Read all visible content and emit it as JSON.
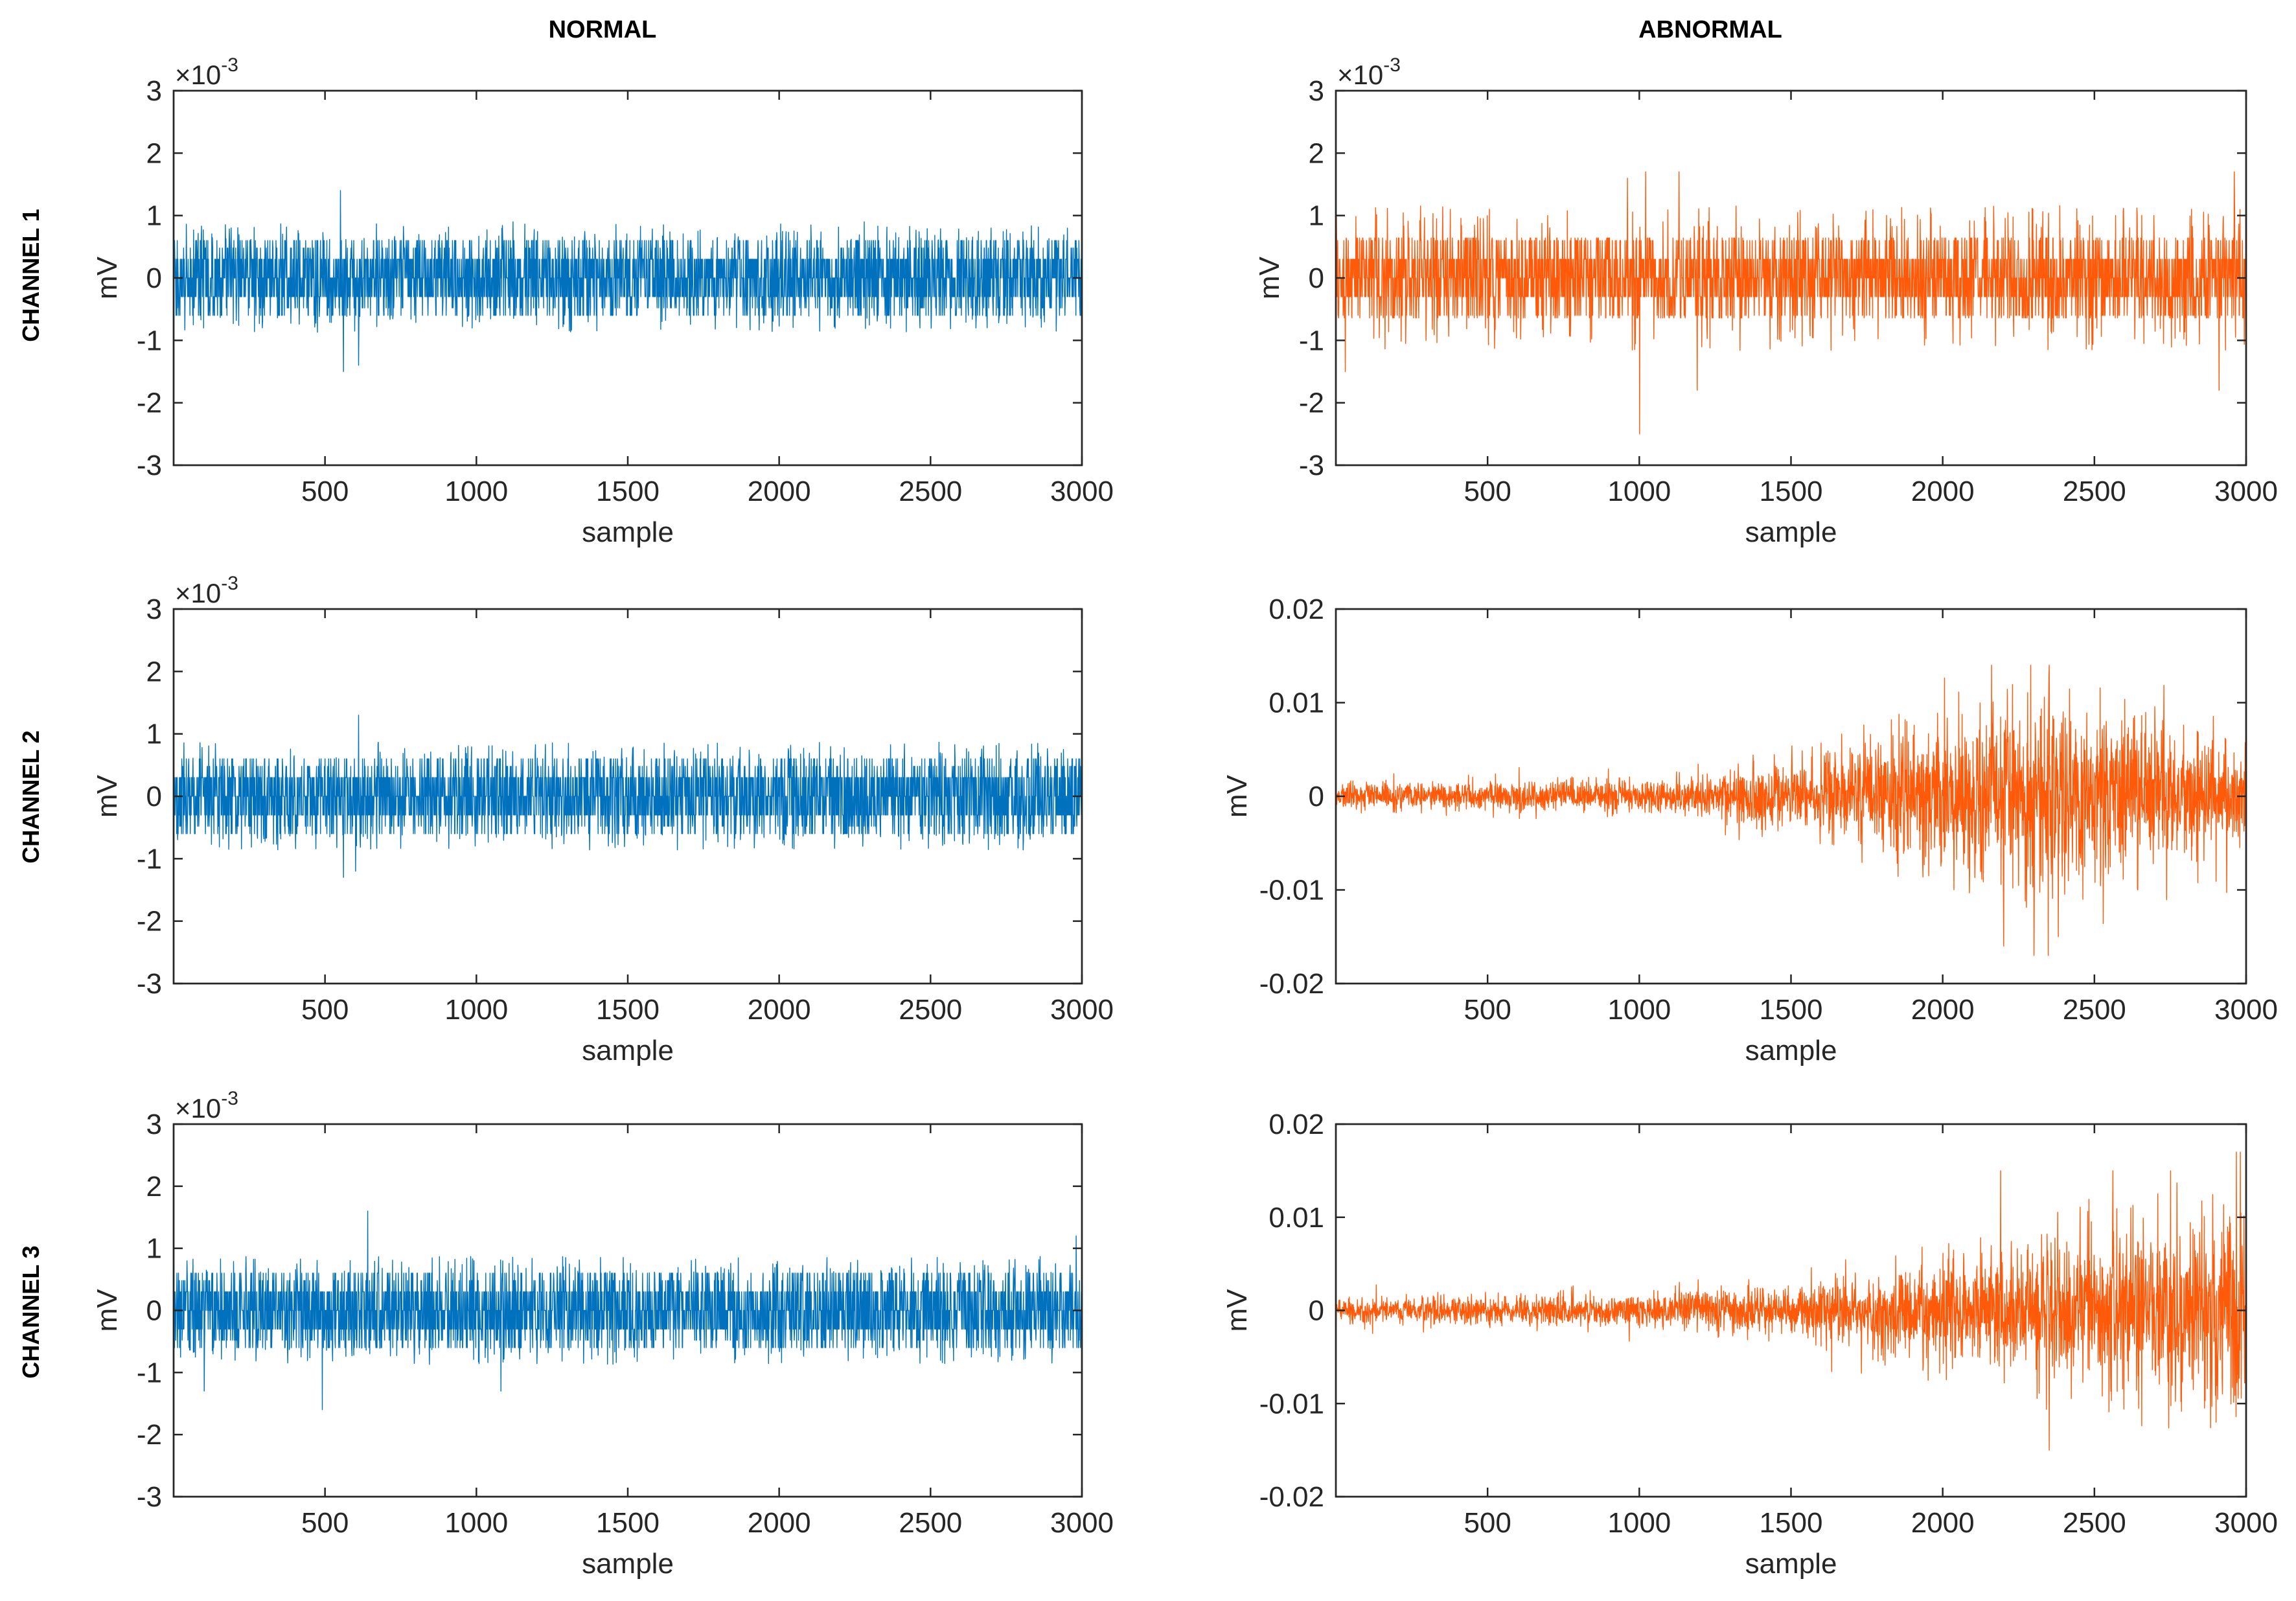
{
  "columns": {
    "normal": "NORMAL",
    "abnormal": "ABNORMAL"
  },
  "rows": [
    "CHANNEL 1",
    "CHANNEL 2",
    "CHANNEL 3"
  ],
  "colors": {
    "normal": "#0072BD",
    "abnormal": "#FF5A0A",
    "axes": "#262626"
  },
  "chart_data": [
    {
      "type": "line",
      "id": "normal-ch1",
      "column": "NORMAL",
      "row": "CHANNEL 1",
      "xlabel": "sample",
      "ylabel": "mV",
      "exponent_prefix": "×10",
      "exponent": "-3",
      "xlim": [
        0,
        3000
      ],
      "ylim": [
        -3,
        3
      ],
      "xticks": [
        500,
        1000,
        1500,
        2000,
        2500,
        3000
      ],
      "xtick_labels": [
        "500",
        "1000",
        "1500",
        "2000",
        "2500",
        "3000"
      ],
      "yticks": [
        -3,
        -2,
        -1,
        0,
        1,
        2,
        3
      ],
      "ytick_labels": [
        "-3",
        "-2",
        "-1",
        "0",
        "1",
        "2",
        "3"
      ],
      "series": [
        {
          "name": "normal channel 1",
          "color": "#0072BD",
          "n_samples": 3000,
          "quantization_step": 0.3,
          "range": [
            -1.5,
            1.4
          ],
          "envelope": [
            [
              0,
              0.6
            ],
            [
              3000,
              0.6
            ]
          ],
          "peaks": [
            [
              550,
              1.4
            ],
            [
              560,
              -1.5
            ],
            [
              610,
              -1.4
            ],
            [
              1120,
              0.9
            ],
            [
              2280,
              0.9
            ]
          ]
        }
      ]
    },
    {
      "type": "line",
      "id": "abnormal-ch1",
      "column": "ABNORMAL",
      "row": "CHANNEL 1",
      "xlabel": "sample",
      "ylabel": "mV",
      "exponent_prefix": "×10",
      "exponent": "-3",
      "xlim": [
        0,
        3000
      ],
      "ylim": [
        -3,
        3
      ],
      "xticks": [
        500,
        1000,
        1500,
        2000,
        2500,
        3000
      ],
      "xtick_labels": [
        "500",
        "1000",
        "1500",
        "2000",
        "2500",
        "3000"
      ],
      "yticks": [
        -3,
        -2,
        -1,
        0,
        1,
        2,
        3
      ],
      "ytick_labels": [
        "-3",
        "-2",
        "-1",
        "0",
        "1",
        "2",
        "3"
      ],
      "series": [
        {
          "name": "abnormal channel 1",
          "color": "#FF5A0A",
          "n_samples": 3000,
          "quantization_step": 0.3,
          "range": [
            -2.5,
            1.7
          ],
          "envelope": [
            [
              0,
              0.8
            ],
            [
              3000,
              0.8
            ]
          ],
          "peaks": [
            [
              30,
              -1.5
            ],
            [
              1000,
              -2.5
            ],
            [
              1020,
              1.7
            ],
            [
              960,
              1.6
            ],
            [
              1130,
              1.7
            ],
            [
              1190,
              -1.8
            ],
            [
              2960,
              1.7
            ],
            [
              2910,
              -1.8
            ]
          ]
        }
      ]
    },
    {
      "type": "line",
      "id": "normal-ch2",
      "column": "NORMAL",
      "row": "CHANNEL 2",
      "xlabel": "sample",
      "ylabel": "mV",
      "exponent_prefix": "×10",
      "exponent": "-3",
      "xlim": [
        0,
        3000
      ],
      "ylim": [
        -3,
        3
      ],
      "xticks": [
        500,
        1000,
        1500,
        2000,
        2500,
        3000
      ],
      "xtick_labels": [
        "500",
        "1000",
        "1500",
        "2000",
        "2500",
        "3000"
      ],
      "yticks": [
        -3,
        -2,
        -1,
        0,
        1,
        2,
        3
      ],
      "ytick_labels": [
        "-3",
        "-2",
        "-1",
        "0",
        "1",
        "2",
        "3"
      ],
      "series": [
        {
          "name": "normal channel 2",
          "color": "#0072BD",
          "n_samples": 3000,
          "quantization_step": 0.3,
          "range": [
            -1.3,
            1.3
          ],
          "envelope": [
            [
              0,
              0.6
            ],
            [
              3000,
              0.6
            ]
          ],
          "peaks": [
            [
              560,
              -1.3
            ],
            [
              610,
              1.3
            ],
            [
              600,
              -1.2
            ]
          ]
        }
      ]
    },
    {
      "type": "line",
      "id": "abnormal-ch2",
      "column": "ABNORMAL",
      "row": "CHANNEL 2",
      "xlabel": "sample",
      "ylabel": "mV",
      "xlim": [
        0,
        3000
      ],
      "ylim": [
        -0.02,
        0.02
      ],
      "xticks": [
        500,
        1000,
        1500,
        2000,
        2500,
        3000
      ],
      "xtick_labels": [
        "500",
        "1000",
        "1500",
        "2000",
        "2500",
        "3000"
      ],
      "yticks": [
        -0.02,
        -0.01,
        0,
        0.01,
        0.02
      ],
      "ytick_labels": [
        "-0.02",
        "-0.01",
        "0",
        "0.01",
        "0.02"
      ],
      "series": [
        {
          "name": "abnormal channel 2",
          "color": "#FF5A0A",
          "n_samples": 3000,
          "range": [
            -0.017,
            0.014
          ],
          "envelope": [
            [
              0,
              0.0015
            ],
            [
              1000,
              0.002
            ],
            [
              1500,
              0.004
            ],
            [
              2000,
              0.009
            ],
            [
              2200,
              0.011
            ],
            [
              2400,
              0.011
            ],
            [
              3000,
              0.006
            ]
          ],
          "peaks": [
            [
              2160,
              0.014
            ],
            [
              2350,
              0.014
            ],
            [
              2200,
              -0.016
            ],
            [
              2300,
              -0.017
            ],
            [
              2380,
              -0.015
            ]
          ]
        }
      ]
    },
    {
      "type": "line",
      "id": "normal-ch3",
      "column": "NORMAL",
      "row": "CHANNEL 3",
      "xlabel": "sample",
      "ylabel": "mV",
      "exponent_prefix": "×10",
      "exponent": "-3",
      "xlim": [
        0,
        3000
      ],
      "ylim": [
        -3,
        3
      ],
      "xticks": [
        500,
        1000,
        1500,
        2000,
        2500,
        3000
      ],
      "xtick_labels": [
        "500",
        "1000",
        "1500",
        "2000",
        "2500",
        "3000"
      ],
      "yticks": [
        -3,
        -2,
        -1,
        0,
        1,
        2,
        3
      ],
      "ytick_labels": [
        "-3",
        "-2",
        "-1",
        "0",
        "1",
        "2",
        "3"
      ],
      "series": [
        {
          "name": "normal channel 3",
          "color": "#0072BD",
          "n_samples": 3000,
          "quantization_step": 0.3,
          "range": [
            -1.6,
            1.6
          ],
          "envelope": [
            [
              0,
              0.6
            ],
            [
              3000,
              0.6
            ]
          ],
          "peaks": [
            [
              100,
              -1.3
            ],
            [
              490,
              -1.6
            ],
            [
              640,
              1.6
            ],
            [
              1080,
              -1.3
            ],
            [
              2980,
              1.2
            ]
          ]
        }
      ]
    },
    {
      "type": "line",
      "id": "abnormal-ch3",
      "column": "ABNORMAL",
      "row": "CHANNEL 3",
      "xlabel": "sample",
      "ylabel": "mV",
      "xlim": [
        0,
        3000
      ],
      "ylim": [
        -0.02,
        0.02
      ],
      "xticks": [
        500,
        1000,
        1500,
        2000,
        2500,
        3000
      ],
      "xtick_labels": [
        "500",
        "1000",
        "1500",
        "2000",
        "2500",
        "3000"
      ],
      "yticks": [
        -0.02,
        -0.01,
        0,
        0.01,
        0.02
      ],
      "ytick_labels": [
        "-0.02",
        "-0.01",
        "0",
        "0.01",
        "0.02"
      ],
      "series": [
        {
          "name": "abnormal channel 3",
          "color": "#FF5A0A",
          "n_samples": 3000,
          "range": [
            -0.015,
            0.017
          ],
          "envelope": [
            [
              0,
              0.0015
            ],
            [
              1000,
              0.002
            ],
            [
              1500,
              0.003
            ],
            [
              2000,
              0.006
            ],
            [
              2500,
              0.009
            ],
            [
              3000,
              0.012
            ]
          ],
          "peaks": [
            [
              2190,
              0.015
            ],
            [
              2350,
              -0.015
            ],
            [
              2980,
              0.017
            ],
            [
              2900,
              -0.012
            ],
            [
              2560,
              0.015
            ],
            [
              2750,
              0.015
            ]
          ]
        }
      ]
    }
  ]
}
